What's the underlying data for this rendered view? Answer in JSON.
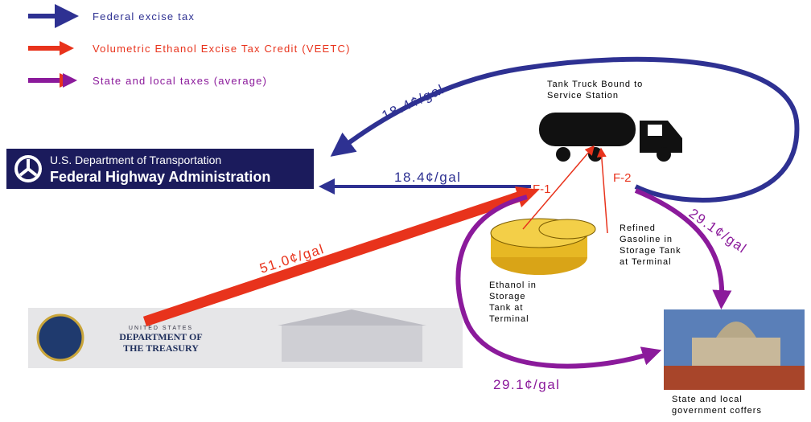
{
  "legend": [
    {
      "label": "Federal excise tax",
      "color": "#2e3192"
    },
    {
      "label": "Volumetric Ethanol Excise Tax Credit (VEETC)",
      "color": "#e8331c"
    },
    {
      "label": "State and local taxes (average)",
      "color": "#8b1a9b"
    }
  ],
  "flows": {
    "federal_curved": "18.4¢/gal",
    "federal_straight": "18.4¢/gal",
    "veetc": "51.0¢/gal",
    "state_f2": "29.1¢/gal",
    "state_f1": "29.1¢/gal"
  },
  "nodes": {
    "truck": [
      "Tank Truck Bound to",
      "Service Station"
    ],
    "f1": "F-1",
    "f2": "F-2",
    "gasoline": [
      "Refined",
      "Gasoline in",
      "Storage Tank",
      "at Terminal"
    ],
    "ethanol": [
      "Ethanol in",
      "Storage",
      "Tank at",
      "Terminal"
    ],
    "state": [
      "State and local",
      "government coffers"
    ],
    "fhwa": [
      "U.S. Department of Transportation",
      "Federal Highway Administration"
    ],
    "treasury": [
      "UNITED STATES",
      "DEPARTMENT OF",
      "THE TREASURY"
    ]
  }
}
